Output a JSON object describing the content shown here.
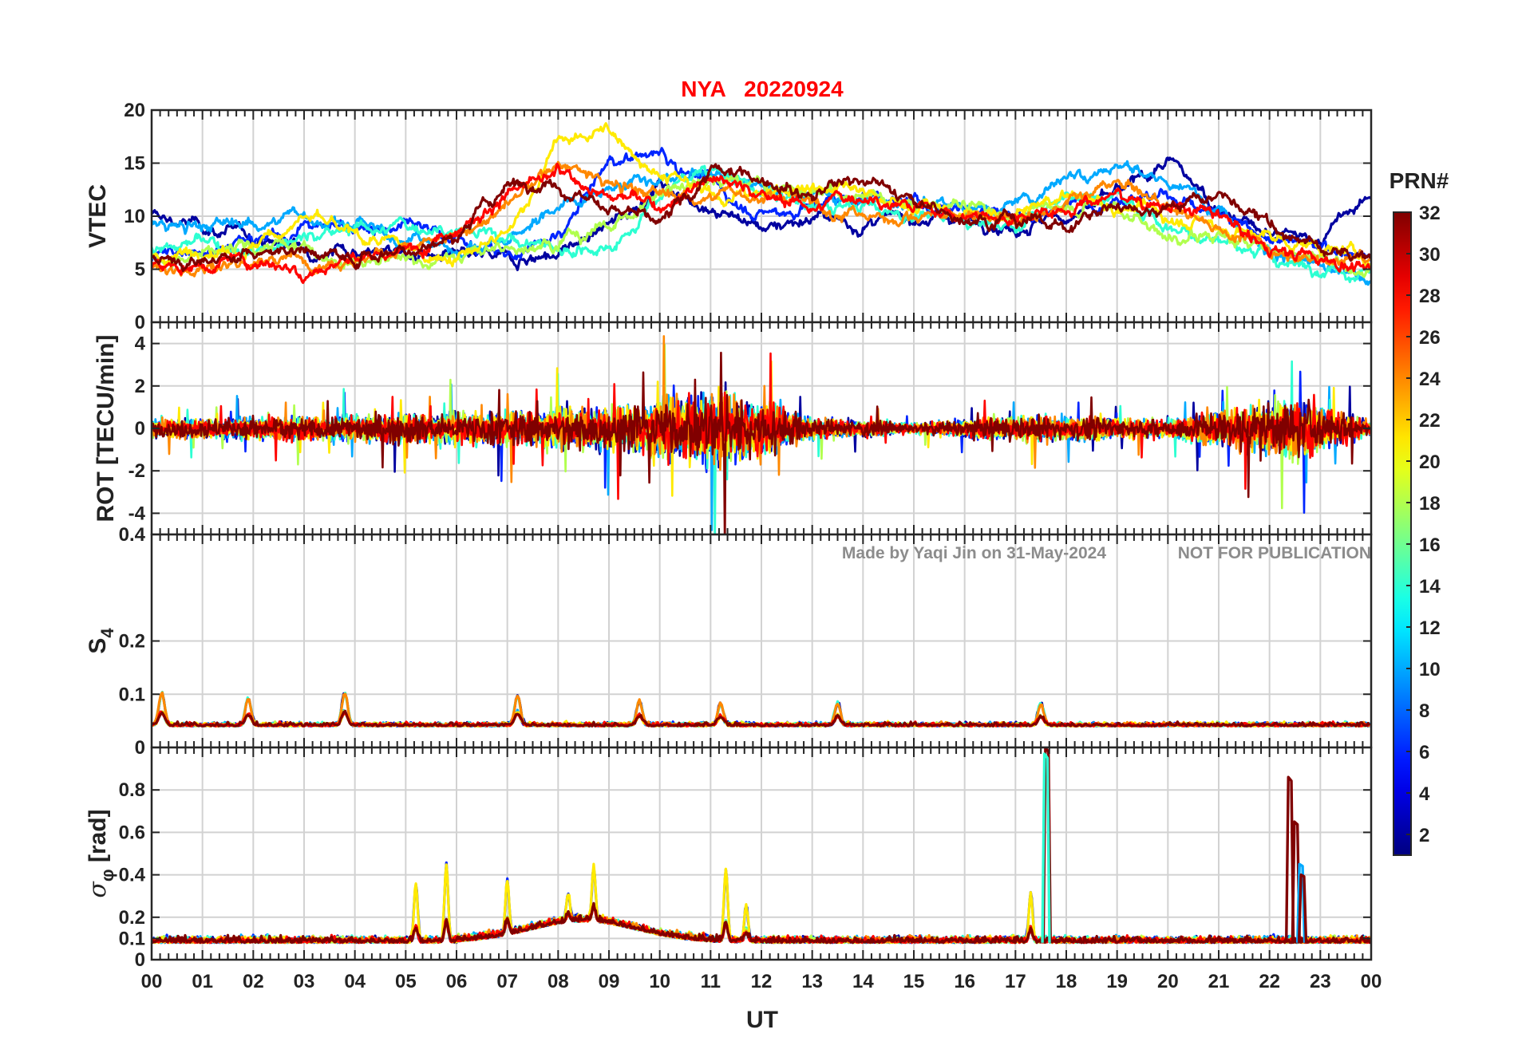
{
  "chart_data": {
    "type": "line",
    "title": "NYA   20220924",
    "xlabel": "UT",
    "x_ticks": [
      "00",
      "01",
      "02",
      "03",
      "04",
      "05",
      "06",
      "07",
      "08",
      "09",
      "10",
      "11",
      "12",
      "13",
      "14",
      "15",
      "16",
      "17",
      "18",
      "19",
      "20",
      "21",
      "22",
      "23",
      "00"
    ],
    "xlim": [
      0,
      24
    ],
    "grid": true,
    "watermark_left": "Made by Yaqi Jin on 31-May-2024",
    "watermark_right": "NOT FOR PUBLICATION",
    "colorbar": {
      "label": "PRN#",
      "range": [
        1,
        32
      ],
      "ticks": [
        "2",
        "4",
        "6",
        "8",
        "10",
        "12",
        "14",
        "16",
        "18",
        "20",
        "22",
        "24",
        "26",
        "28",
        "30",
        "32"
      ],
      "colormap": "jet"
    },
    "panels": [
      {
        "ylabel": "VTEC",
        "ylim": [
          0,
          20
        ],
        "ytick_values": [
          0,
          5,
          10,
          15,
          20
        ],
        "yticks": [
          "0",
          "5",
          "10",
          "15",
          "20"
        ]
      },
      {
        "ylabel": "ROT [TECU/min]",
        "ylim": [
          -5,
          5
        ],
        "ytick_values": [
          -4,
          -2,
          0,
          2,
          4
        ],
        "yticks": [
          "-4",
          "-2",
          "0",
          "2",
          "4"
        ]
      },
      {
        "ylabel_main": "S",
        "ylabel_sub": "4",
        "ylim": [
          0,
          0.4
        ],
        "ytick_values": [
          0,
          0.1,
          0.2,
          0.4
        ],
        "yticks": [
          "0",
          "0.1",
          "0.2",
          "0.4"
        ]
      },
      {
        "ylabel_main": "σ",
        "ylabel_sub": "φ",
        "ylabel_unit": "[rad]",
        "ylim": [
          0,
          1
        ],
        "ytick_values": [
          0,
          0.1,
          0.2,
          0.4,
          0.6,
          0.8
        ],
        "yticks": [
          "0",
          "0.1",
          "0.2",
          "0.4",
          "0.6",
          "0.8"
        ]
      }
    ],
    "series_levels": {
      "vtec": [
        {
          "prn": 2,
          "points": [
            [
              0,
              10
            ],
            [
              1,
              9
            ],
            [
              2,
              8
            ],
            [
              3,
              7
            ],
            [
              4,
              7
            ],
            [
              5,
              6.5
            ],
            [
              6,
              6
            ],
            [
              7,
              6
            ],
            [
              8,
              6.5
            ],
            [
              9,
              9
            ],
            [
              10,
              13
            ],
            [
              11,
              11
            ],
            [
              12,
              9
            ],
            [
              13,
              10
            ],
            [
              14,
              9
            ],
            [
              15,
              10
            ],
            [
              16,
              10
            ],
            [
              17,
              9
            ],
            [
              18,
              10
            ],
            [
              19,
              12
            ],
            [
              20,
              15
            ],
            [
              21,
              11
            ],
            [
              22,
              8
            ],
            [
              23,
              8
            ],
            [
              24,
              12
            ]
          ]
        },
        {
          "prn": 6,
          "points": [
            [
              0,
              6
            ],
            [
              1,
              7
            ],
            [
              2,
              7.5
            ],
            [
              3,
              9
            ],
            [
              4,
              9
            ],
            [
              5,
              9
            ],
            [
              6,
              8
            ],
            [
              7,
              6
            ],
            [
              8,
              8
            ],
            [
              9,
              15
            ],
            [
              10,
              16
            ],
            [
              11,
              13
            ],
            [
              12,
              10
            ],
            [
              13,
              11
            ],
            [
              14,
              12
            ],
            [
              15,
              11
            ],
            [
              16,
              11
            ],
            [
              17,
              10
            ],
            [
              18,
              11
            ],
            [
              19,
              12
            ],
            [
              20,
              12
            ],
            [
              21,
              10
            ],
            [
              22,
              8
            ],
            [
              23,
              7
            ],
            [
              24,
              6
            ]
          ]
        },
        {
          "prn": 10,
          "points": [
            [
              0,
              9
            ],
            [
              1,
              9
            ],
            [
              2,
              9.5
            ],
            [
              3,
              10
            ],
            [
              4,
              9
            ],
            [
              5,
              8
            ],
            [
              6,
              7
            ],
            [
              7,
              7.5
            ],
            [
              8,
              11
            ],
            [
              9,
              13
            ],
            [
              10,
              13
            ],
            [
              11,
              14
            ],
            [
              12,
              13
            ],
            [
              13,
              12
            ],
            [
              14,
              12
            ],
            [
              15,
              11
            ],
            [
              16,
              11
            ],
            [
              17,
              11
            ],
            [
              18,
              14
            ],
            [
              19,
              15
            ],
            [
              20,
              13
            ],
            [
              21,
              11
            ],
            [
              22,
              7
            ],
            [
              23,
              5
            ],
            [
              24,
              4
            ]
          ]
        },
        {
          "prn": 14,
          "points": [
            [
              0,
              7
            ],
            [
              1,
              7.5
            ],
            [
              2,
              7
            ],
            [
              3,
              8
            ],
            [
              4,
              9
            ],
            [
              5,
              9
            ],
            [
              6,
              9
            ],
            [
              7,
              8
            ],
            [
              8,
              7
            ],
            [
              9,
              7
            ],
            [
              10,
              12
            ],
            [
              11,
              15
            ],
            [
              12,
              12
            ],
            [
              13,
              11
            ],
            [
              14,
              11
            ],
            [
              15,
              10
            ],
            [
              16,
              10
            ],
            [
              17,
              9
            ],
            [
              18,
              12
            ],
            [
              19,
              12
            ],
            [
              20,
              9
            ],
            [
              21,
              8
            ],
            [
              22,
              6
            ],
            [
              23,
              5
            ],
            [
              24,
              5
            ]
          ]
        },
        {
          "prn": 18,
          "points": [
            [
              0,
              6
            ],
            [
              1,
              6
            ],
            [
              2,
              7
            ],
            [
              3,
              7
            ],
            [
              4,
              6
            ],
            [
              5,
              6
            ],
            [
              6,
              6
            ],
            [
              7,
              7
            ],
            [
              8,
              8
            ],
            [
              9,
              9
            ],
            [
              10,
              12
            ],
            [
              11,
              14
            ],
            [
              12,
              13
            ],
            [
              13,
              12
            ],
            [
              14,
              12
            ],
            [
              15,
              11
            ],
            [
              16,
              11
            ],
            [
              17,
              10
            ],
            [
              18,
              11
            ],
            [
              19,
              11
            ],
            [
              20,
              8
            ],
            [
              21,
              8
            ],
            [
              22,
              7
            ],
            [
              23,
              6
            ],
            [
              24,
              5
            ]
          ]
        },
        {
          "prn": 21,
          "points": [
            [
              0,
              6
            ],
            [
              1,
              7
            ],
            [
              2,
              7
            ],
            [
              3,
              10
            ],
            [
              4,
              8
            ],
            [
              5,
              7
            ],
            [
              6,
              6
            ],
            [
              7,
              8
            ],
            [
              8,
              17
            ],
            [
              9,
              18
            ],
            [
              10,
              14
            ],
            [
              11,
              12
            ],
            [
              12,
              12
            ],
            [
              13,
              13
            ],
            [
              14,
              12
            ],
            [
              15,
              11
            ],
            [
              16,
              10
            ],
            [
              17,
              10
            ],
            [
              18,
              12
            ],
            [
              19,
              11
            ],
            [
              20,
              10
            ],
            [
              21,
              9
            ],
            [
              22,
              8
            ],
            [
              23,
              7
            ],
            [
              24,
              6
            ]
          ]
        },
        {
          "prn": 24,
          "points": [
            [
              0,
              5
            ],
            [
              1,
              5
            ],
            [
              2,
              6
            ],
            [
              3,
              6
            ],
            [
              4,
              6
            ],
            [
              5,
              7
            ],
            [
              6,
              8
            ],
            [
              7,
              11
            ],
            [
              8,
              15
            ],
            [
              9,
              13
            ],
            [
              10,
              12
            ],
            [
              11,
              12
            ],
            [
              12,
              12
            ],
            [
              13,
              11
            ],
            [
              14,
              10
            ],
            [
              15,
              10
            ],
            [
              16,
              10
            ],
            [
              17,
              10
            ],
            [
              18,
              11
            ],
            [
              19,
              13
            ],
            [
              20,
              11
            ],
            [
              21,
              9
            ],
            [
              22,
              7
            ],
            [
              23,
              6
            ],
            [
              24,
              6
            ]
          ]
        },
        {
          "prn": 28,
          "points": [
            [
              0,
              5
            ],
            [
              1,
              5.5
            ],
            [
              2,
              6
            ],
            [
              3,
              5
            ],
            [
              4,
              6
            ],
            [
              5,
              6.5
            ],
            [
              6,
              9
            ],
            [
              7,
              12
            ],
            [
              8,
              14
            ],
            [
              9,
              12
            ],
            [
              10,
              11
            ],
            [
              11,
              14
            ],
            [
              12,
              12
            ],
            [
              13,
              11
            ],
            [
              14,
              12
            ],
            [
              15,
              11
            ],
            [
              16,
              10
            ],
            [
              17,
              10
            ],
            [
              18,
              11
            ],
            [
              19,
              12
            ],
            [
              20,
              11
            ],
            [
              21,
              10
            ],
            [
              22,
              7
            ],
            [
              23,
              6
            ],
            [
              24,
              5
            ]
          ]
        },
        {
          "prn": 32,
          "points": [
            [
              0,
              6
            ],
            [
              1,
              6
            ],
            [
              2,
              6.5
            ],
            [
              3,
              7
            ],
            [
              4,
              6
            ],
            [
              5,
              7
            ],
            [
              6,
              8
            ],
            [
              7,
              13
            ],
            [
              8,
              13
            ],
            [
              9,
              11
            ],
            [
              10,
              9
            ],
            [
              11,
              14
            ],
            [
              12,
              14
            ],
            [
              13,
              12
            ],
            [
              14,
              14
            ],
            [
              15,
              11
            ],
            [
              16,
              10
            ],
            [
              17,
              10
            ],
            [
              18,
              9
            ],
            [
              19,
              11
            ],
            [
              20,
              11
            ],
            [
              21,
              12
            ],
            [
              22,
              9
            ],
            [
              23,
              7
            ],
            [
              24,
              6
            ]
          ]
        }
      ],
      "rot_amplitude": [
        {
          "hour": 0,
          "amp": 1.0
        },
        {
          "hour": 4,
          "amp": 1.5
        },
        {
          "hour": 7,
          "amp": 2.0
        },
        {
          "hour": 9,
          "amp": 2.5
        },
        {
          "hour": 11.3,
          "amp": 4.5
        },
        {
          "hour": 13,
          "amp": 1.2
        },
        {
          "hour": 15,
          "amp": 0.6
        },
        {
          "hour": 17.3,
          "amp": 1.5
        },
        {
          "hour": 20,
          "amp": 1.0
        },
        {
          "hour": 22.5,
          "amp": 3.5
        },
        {
          "hour": 24,
          "amp": 0.8
        }
      ],
      "s4_baseline": 0.04,
      "s4_peaks": [
        [
          0.2,
          0.1
        ],
        [
          3.8,
          0.1
        ],
        [
          1.9,
          0.09
        ],
        [
          7.2,
          0.095
        ],
        [
          9.6,
          0.085
        ],
        [
          11.2,
          0.08
        ],
        [
          13.5,
          0.08
        ],
        [
          17.5,
          0.08
        ]
      ],
      "sigma_baseline": 0.08,
      "sigma_bumps": [
        [
          5.8,
          0.44
        ],
        [
          5.2,
          0.35
        ],
        [
          7.0,
          0.37
        ],
        [
          8.7,
          0.43
        ],
        [
          8.2,
          0.3
        ],
        [
          11.3,
          0.42
        ],
        [
          11.7,
          0.25
        ],
        [
          17.3,
          0.31
        ]
      ],
      "sigma_spikes": [
        [
          17.62,
          1.0,
          32
        ],
        [
          17.6,
          0.97,
          14
        ],
        [
          22.4,
          0.86,
          32
        ],
        [
          22.52,
          0.65,
          32
        ],
        [
          22.62,
          0.45,
          10
        ],
        [
          22.65,
          0.4,
          32
        ]
      ]
    }
  }
}
